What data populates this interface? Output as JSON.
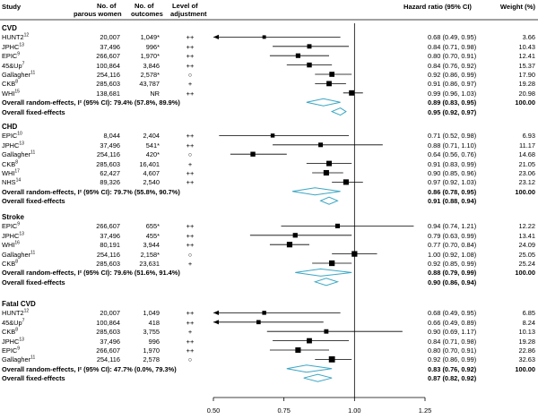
{
  "headers": {
    "study": "Study",
    "parous": "No. of\nparous women",
    "outcomes": "No. of\noutcomes",
    "adjust": "Level of\nadjustment",
    "hr": "Hazard ratio (95% CI)",
    "weight": "Weight (%)"
  },
  "chart_data": {
    "type": "forest",
    "xlabel": "",
    "xticks": [
      0.5,
      0.75,
      1.0,
      1.25
    ],
    "xtick_labels": [
      "0.50",
      "0.75",
      "1.00",
      "1.25"
    ],
    "xlim": [
      0.5,
      1.25
    ],
    "reference_line": 1.0,
    "groups": [
      {
        "name": "CVD",
        "rows": [
          {
            "study": "HUNT2",
            "sup": "12",
            "parous": "20,007",
            "outcomes": "1,049*",
            "adjust": "++",
            "hr": 0.68,
            "lo": 0.49,
            "hi": 0.95,
            "hr_text": "0.68 (0.49, 0.95)",
            "weight": "3.66",
            "w": 3.66
          },
          {
            "study": "JPHC",
            "sup": "13",
            "parous": "37,496",
            "outcomes": "996*",
            "adjust": "++",
            "hr": 0.84,
            "lo": 0.71,
            "hi": 0.98,
            "hr_text": "0.84 (0.71, 0.98)",
            "weight": "10.43",
            "w": 10.43
          },
          {
            "study": "EPIC",
            "sup": "9",
            "parous": "266,607",
            "outcomes": "1,970*",
            "adjust": "++",
            "hr": 0.8,
            "lo": 0.7,
            "hi": 0.91,
            "hr_text": "0.80 (0.70, 0.91)",
            "weight": "12.41",
            "w": 12.41
          },
          {
            "study": "45&Up",
            "sup": "7",
            "parous": "100,864",
            "outcomes": "3,846",
            "adjust": "++",
            "hr": 0.84,
            "lo": 0.76,
            "hi": 0.92,
            "hr_text": "0.84 (0.76, 0.92)",
            "weight": "15.37",
            "w": 15.37
          },
          {
            "study": "Gallagher",
            "sup": "11",
            "parous": "254,116",
            "outcomes": "2,578*",
            "adjust": "○",
            "hr": 0.92,
            "lo": 0.86,
            "hi": 0.99,
            "hr_text": "0.92 (0.86, 0.99)",
            "weight": "17.90",
            "w": 17.9
          },
          {
            "study": "CKB",
            "sup": "8",
            "parous": "285,603",
            "outcomes": "43,787",
            "adjust": "+",
            "hr": 0.91,
            "lo": 0.86,
            "hi": 0.97,
            "hr_text": "0.91 (0.86, 0.97)",
            "weight": "19.28",
            "w": 19.28
          },
          {
            "study": "WHI",
            "sup": "15",
            "parous": "138,681",
            "outcomes": "NR",
            "adjust": "++",
            "hr": 0.99,
            "lo": 0.96,
            "hi": 1.03,
            "hr_text": "0.99 (0.96, 1.03)",
            "weight": "20.98",
            "w": 20.98
          }
        ],
        "random": {
          "label": "Overall random-effects, I² (95% CI): 79.4% (57.8%, 89.9%)",
          "hr": 0.89,
          "lo": 0.83,
          "hi": 0.95,
          "hr_text": "0.89 (0.83, 0.95)",
          "weight": "100.00"
        },
        "fixed": {
          "label": "Overall fixed-effects",
          "hr": 0.95,
          "lo": 0.92,
          "hi": 0.97,
          "hr_text": "0.95 (0.92, 0.97)"
        }
      },
      {
        "name": "CHD",
        "rows": [
          {
            "study": "EPIC",
            "sup": "10",
            "parous": "8,044",
            "outcomes": "2,404",
            "adjust": "++",
            "hr": 0.71,
            "lo": 0.52,
            "hi": 0.98,
            "hr_text": "0.71 (0.52, 0.98)",
            "weight": "6.93",
            "w": 6.93
          },
          {
            "study": "JPHC",
            "sup": "13",
            "parous": "37,496",
            "outcomes": "541*",
            "adjust": "++",
            "hr": 0.88,
            "lo": 0.71,
            "hi": 1.1,
            "hr_text": "0.88 (0.71, 1.10)",
            "weight": "11.17",
            "w": 11.17
          },
          {
            "study": "Gallagher",
            "sup": "11",
            "parous": "254,116",
            "outcomes": "420*",
            "adjust": "○",
            "hr": 0.64,
            "lo": 0.56,
            "hi": 0.76,
            "hr_text": "0.64 (0.56, 0.76)",
            "weight": "14.68",
            "w": 14.68
          },
          {
            "study": "CKB",
            "sup": "8",
            "parous": "285,603",
            "outcomes": "16,401",
            "adjust": "+",
            "hr": 0.91,
            "lo": 0.83,
            "hi": 0.99,
            "hr_text": "0.91 (0.83, 0.99)",
            "weight": "21.05",
            "w": 21.05
          },
          {
            "study": "WHI",
            "sup": "17",
            "parous": "62,427",
            "outcomes": "4,607",
            "adjust": "++",
            "hr": 0.9,
            "lo": 0.85,
            "hi": 0.96,
            "hr_text": "0.90 (0.85, 0.96)",
            "weight": "23.06",
            "w": 23.06
          },
          {
            "study": "NHS",
            "sup": "14",
            "parous": "89,326",
            "outcomes": "2,540",
            "adjust": "++",
            "hr": 0.97,
            "lo": 0.92,
            "hi": 1.03,
            "hr_text": "0.97 (0.92, 1.03)",
            "weight": "23.12",
            "w": 23.12
          }
        ],
        "random": {
          "label": "Overall random-effects, I² (95% CI): 79.7% (55.8%, 90.7%)",
          "hr": 0.86,
          "lo": 0.78,
          "hi": 0.95,
          "hr_text": "0.86 (0.78, 0.95)",
          "weight": "100.00"
        },
        "fixed": {
          "label": "Overall fixed-effects",
          "hr": 0.91,
          "lo": 0.88,
          "hi": 0.94,
          "hr_text": "0.91 (0.88, 0.94)"
        }
      },
      {
        "name": "Stroke",
        "rows": [
          {
            "study": "EPIC",
            "sup": "9",
            "parous": "266,607",
            "outcomes": "655*",
            "adjust": "++",
            "hr": 0.94,
            "lo": 0.74,
            "hi": 1.21,
            "hr_text": "0.94 (0.74, 1.21)",
            "weight": "12.22",
            "w": 12.22
          },
          {
            "study": "JPHC",
            "sup": "13",
            "parous": "37,496",
            "outcomes": "455*",
            "adjust": "++",
            "hr": 0.79,
            "lo": 0.63,
            "hi": 0.99,
            "hr_text": "0.79 (0.63, 0.99)",
            "weight": "13.41",
            "w": 13.41
          },
          {
            "study": "WHI",
            "sup": "16",
            "parous": "80,191",
            "outcomes": "3,944",
            "adjust": "++",
            "hr": 0.77,
            "lo": 0.7,
            "hi": 0.84,
            "hr_text": "0.77 (0.70, 0.84)",
            "weight": "24.09",
            "w": 24.09
          },
          {
            "study": "Gallagher",
            "sup": "11",
            "parous": "254,116",
            "outcomes": "2,158*",
            "adjust": "○",
            "hr": 1.0,
            "lo": 0.92,
            "hi": 1.08,
            "hr_text": "1.00 (0.92, 1.08)",
            "weight": "25.05",
            "w": 25.05
          },
          {
            "study": "CKB",
            "sup": "8",
            "parous": "285,603",
            "outcomes": "23,631",
            "adjust": "+",
            "hr": 0.92,
            "lo": 0.85,
            "hi": 0.99,
            "hr_text": "0.92 (0.85, 0.99)",
            "weight": "25.24",
            "w": 25.24
          }
        ],
        "random": {
          "label": "Overall random-effects, I² (95% CI): 79.6% (51.6%, 91.4%)",
          "hr": 0.88,
          "lo": 0.79,
          "hi": 0.99,
          "hr_text": "0.88 (0.79, 0.99)",
          "weight": "100.00"
        },
        "fixed": {
          "label": "Overall fixed-effects",
          "hr": 0.9,
          "lo": 0.86,
          "hi": 0.94,
          "hr_text": "0.90 (0.86, 0.94)"
        }
      },
      {
        "name": "Fatal CVD",
        "rows": [
          {
            "study": "HUNT2",
            "sup": "12",
            "parous": "20,007",
            "outcomes": "1,049",
            "adjust": "++",
            "hr": 0.68,
            "lo": 0.49,
            "hi": 0.95,
            "hr_text": "0.68 (0.49, 0.95)",
            "weight": "6.85",
            "w": 6.85
          },
          {
            "study": "45&Up",
            "sup": "7",
            "parous": "100,864",
            "outcomes": "418",
            "adjust": "++",
            "hr": 0.66,
            "lo": 0.49,
            "hi": 0.89,
            "hr_text": "0.66 (0.49, 0.89)",
            "weight": "8.24",
            "w": 8.24
          },
          {
            "study": "CKB",
            "sup": "8",
            "parous": "285,603",
            "outcomes": "3,755",
            "adjust": "+",
            "hr": 0.9,
            "lo": 0.69,
            "hi": 1.17,
            "hr_text": "0.90 (0.69, 1.17)",
            "weight": "10.13",
            "w": 10.13
          },
          {
            "study": "JPHC",
            "sup": "13",
            "parous": "37,496",
            "outcomes": "996",
            "adjust": "++",
            "hr": 0.84,
            "lo": 0.71,
            "hi": 0.98,
            "hr_text": "0.84 (0.71, 0.98)",
            "weight": "19.28",
            "w": 19.28
          },
          {
            "study": "EPIC",
            "sup": "9",
            "parous": "266,607",
            "outcomes": "1,970",
            "adjust": "++",
            "hr": 0.8,
            "lo": 0.7,
            "hi": 0.91,
            "hr_text": "0.80 (0.70, 0.91)",
            "weight": "22.86",
            "w": 22.86
          },
          {
            "study": "Gallagher",
            "sup": "11",
            "parous": "254,116",
            "outcomes": "2,578",
            "adjust": "○",
            "hr": 0.92,
            "lo": 0.86,
            "hi": 0.99,
            "hr_text": "0.92 (0.86, 0.99)",
            "weight": "32.63",
            "w": 32.63
          }
        ],
        "random": {
          "label": "Overall random-effects, I² (95% CI): 47.7% (0.0%, 79.3%)",
          "hr": 0.83,
          "lo": 0.76,
          "hi": 0.92,
          "hr_text": "0.83 (0.76, 0.92)",
          "weight": "100.00"
        },
        "fixed": {
          "label": "Overall fixed-effects",
          "hr": 0.87,
          "lo": 0.82,
          "hi": 0.92,
          "hr_text": "0.87 (0.82, 0.92)"
        }
      }
    ]
  },
  "colors": {
    "marker": "#000000",
    "diamond_stroke": "#3aa6c4",
    "axis": "#000000"
  }
}
